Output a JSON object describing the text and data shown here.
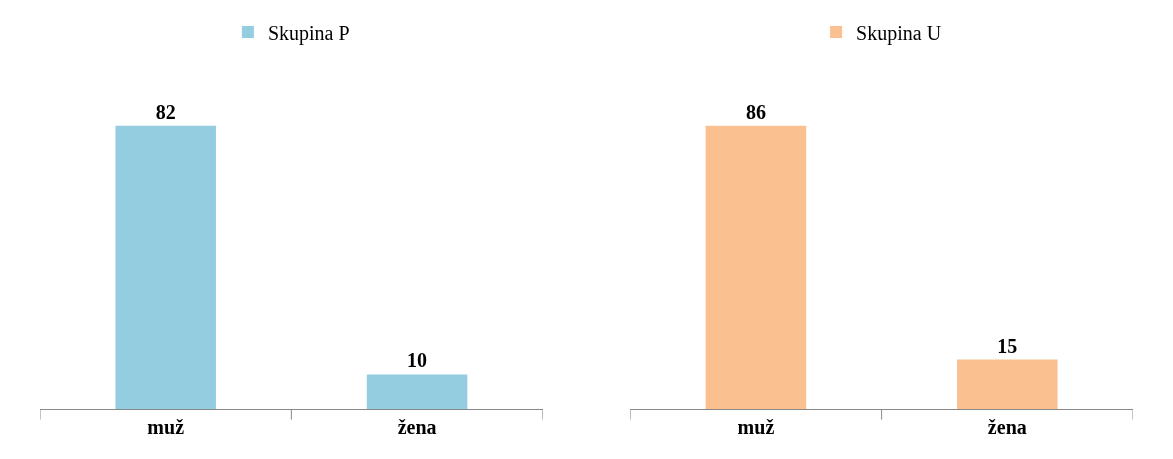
{
  "chart_data": [
    {
      "type": "bar",
      "categories": [
        "muž",
        "žena"
      ],
      "series": [
        {
          "name": "Skupina P",
          "color": "#94cddf",
          "values": [
            82,
            10
          ]
        }
      ],
      "data_labels": true,
      "legend": "top",
      "tick_labels": "x"
    },
    {
      "type": "bar",
      "categories": [
        "muž",
        "žena"
      ],
      "series": [
        {
          "name": "Skupina U",
          "color": "#fac090",
          "values": [
            86,
            15
          ]
        }
      ],
      "data_labels": true,
      "legend": "top",
      "tick_labels": "x"
    }
  ]
}
